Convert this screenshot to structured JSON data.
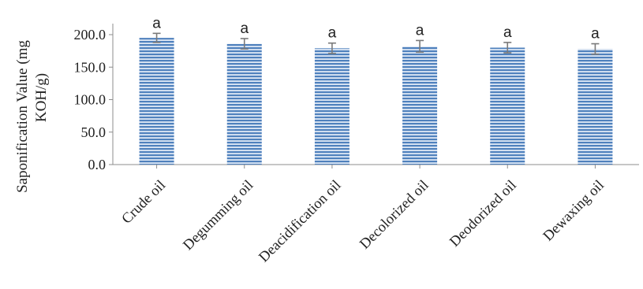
{
  "chart_data": {
    "type": "bar",
    "categories": [
      "Crude oil",
      "Degumming oil",
      "Deacidification oil",
      "Decolorized oil",
      "Deodorized oil",
      "Dewaxing oil"
    ],
    "values": [
      195.0,
      186.0,
      179.0,
      182.0,
      180.0,
      178.0
    ],
    "errors": [
      7.0,
      8.0,
      8.0,
      9.0,
      8.0,
      8.0
    ],
    "significance": [
      "a",
      "a",
      "a",
      "a",
      "a",
      "a"
    ],
    "title": "",
    "xlabel": "",
    "ylabel_line1": "Saponification Value  (mg",
    "ylabel_line2": "KOH/g)",
    "ylim": [
      0,
      200
    ],
    "yticks": [
      "0.0",
      "50.0",
      "100.0",
      "150.0",
      "200.0"
    ],
    "bar_color": "#4f81bd",
    "bar_stripe_color": "#dfe8f5",
    "grid": false,
    "legend": "none"
  }
}
